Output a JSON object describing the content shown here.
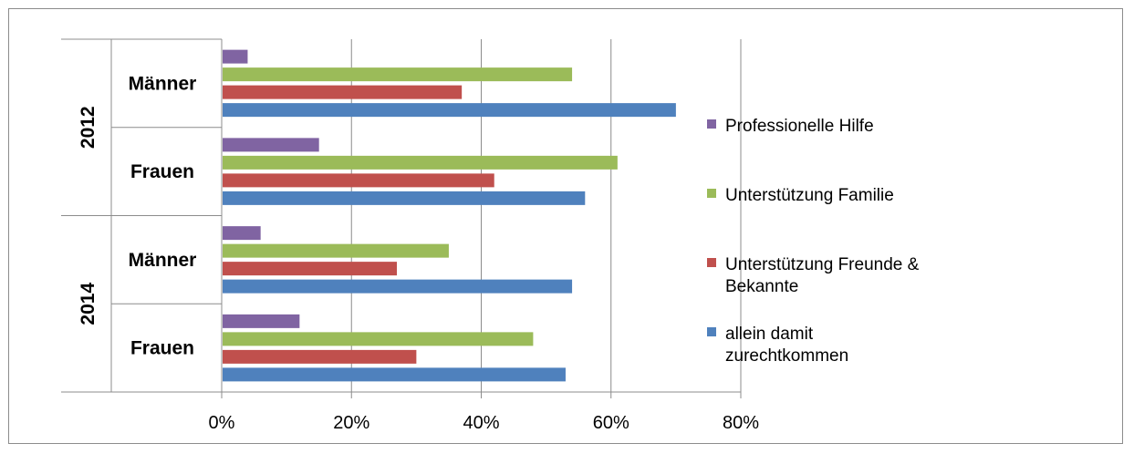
{
  "chart_data": {
    "type": "bar",
    "orientation": "horizontal",
    "groups": [
      {
        "label": "2012",
        "categories": [
          "Männer",
          "Frauen"
        ]
      },
      {
        "label": "2014",
        "categories": [
          "Männer",
          "Frauen"
        ]
      }
    ],
    "series": [
      {
        "name": "Professionelle Hilfe",
        "color": "#8064a2",
        "values": [
          4,
          15,
          6,
          12
        ]
      },
      {
        "name": "Unterstützung Familie",
        "color": "#9bbb59",
        "values": [
          54,
          61,
          35,
          48
        ]
      },
      {
        "name": "Unterstützung  Freunde & Bekannte",
        "legend_lines": [
          "Unterstützung  Freunde &",
          "Bekannte"
        ],
        "color": "#c0504d",
        "values": [
          37,
          42,
          27,
          30
        ]
      },
      {
        "name": "allein damit zurechtkommen",
        "legend_lines": [
          "allein damit",
          "zurechtkommen"
        ],
        "color": "#4f81bd",
        "values": [
          70,
          56,
          54,
          53
        ]
      }
    ],
    "xlim": [
      0,
      80
    ],
    "xticks": [
      "0%",
      "20%",
      "40%",
      "60%",
      "80%"
    ],
    "tick_values": [
      0,
      20,
      40,
      60,
      80
    ],
    "grid": true,
    "legend": "right"
  }
}
